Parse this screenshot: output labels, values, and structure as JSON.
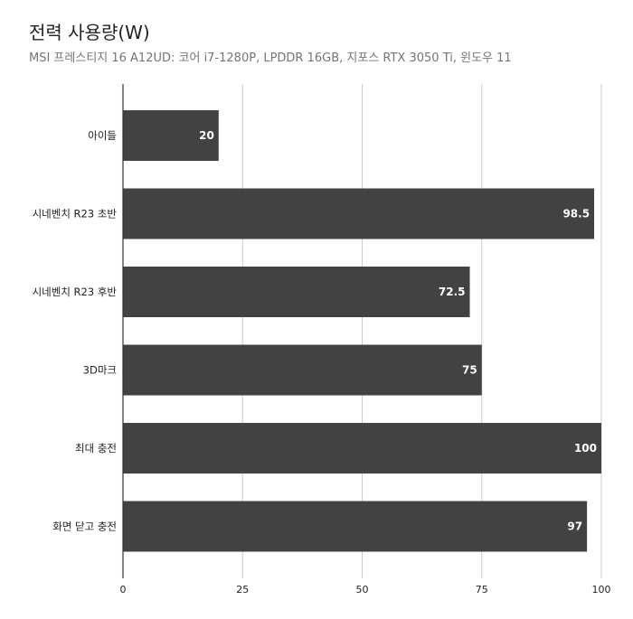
{
  "chart_data": {
    "type": "bar",
    "orientation": "horizontal",
    "title": "전력 사용량(W)",
    "subtitle": "MSI 프레스티지 16 A12UD: 코어 i7-1280P,  LPDDR 16GB, 지포스 RTX 3050 Ti, 윈도우 11",
    "categories": [
      "아이들",
      "시네벤치 R23 초반",
      "시네벤치 R23 후반",
      "3D마크",
      "최대 충전",
      "화면 닫고 충전"
    ],
    "values": [
      20,
      98.5,
      72.5,
      75,
      100,
      97
    ],
    "data_labels": [
      "20",
      "98.5",
      "72.5",
      "75",
      "100",
      "97"
    ],
    "xlim": [
      0,
      100
    ],
    "xticks": [
      0,
      25,
      50,
      75,
      100
    ],
    "grid": true,
    "legend": "none",
    "bar_color": "#424242",
    "grid_color": "#cccccc",
    "axis_color": "#333333"
  }
}
